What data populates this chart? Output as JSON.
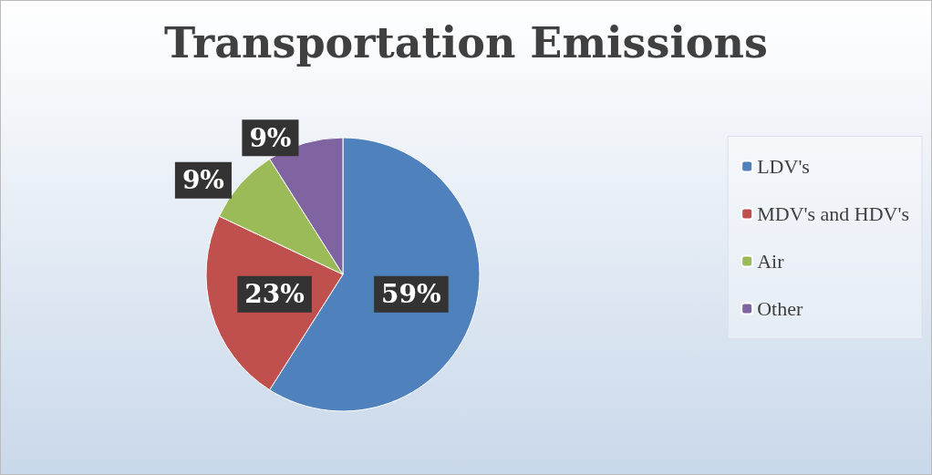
{
  "chart_data": {
    "type": "pie",
    "title": "Transportation Emissions",
    "categories": [
      "LDV's",
      "MDV's and HDV's",
      "Air",
      "Other"
    ],
    "values": [
      59,
      23,
      9,
      9
    ],
    "colors": [
      "#4f81bd",
      "#c0504d",
      "#9bbb59",
      "#8064a2"
    ],
    "value_labels": [
      "59%",
      "23%",
      "9%",
      "9%"
    ],
    "legend": "right"
  }
}
